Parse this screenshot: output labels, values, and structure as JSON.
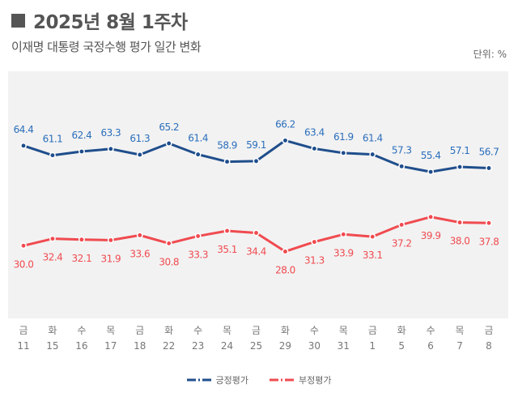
{
  "header": {
    "title": "2025년 8월 1주차",
    "subtitle": "이재명 대통령 국정수행 평가 일간 변화",
    "unit": "단위: %"
  },
  "chart_data": {
    "type": "line",
    "categories": [
      "11",
      "15",
      "16",
      "17",
      "18",
      "22",
      "23",
      "24",
      "25",
      "29",
      "30",
      "31",
      "1",
      "5",
      "6",
      "7",
      "8"
    ],
    "weekdays": [
      "금",
      "화",
      "수",
      "목",
      "금",
      "화",
      "수",
      "목",
      "금",
      "화",
      "수",
      "목",
      "금",
      "화",
      "수",
      "목",
      "금"
    ],
    "ylim": [
      5,
      90
    ],
    "grid": false,
    "legend_position": "bottom",
    "series": [
      {
        "name": "긍정평가",
        "color": "#1f4e8c",
        "label_color": "#2a6ebb",
        "values": [
          64.4,
          61.1,
          62.4,
          63.3,
          61.3,
          65.2,
          61.4,
          58.9,
          59.1,
          66.2,
          63.4,
          61.9,
          61.4,
          57.3,
          55.4,
          57.1,
          56.7
        ]
      },
      {
        "name": "부정평가",
        "color": "#f04b50",
        "label_color": "#f04b50",
        "values": [
          30.0,
          32.4,
          32.1,
          31.9,
          33.6,
          30.8,
          33.3,
          35.1,
          34.4,
          28.0,
          31.3,
          33.9,
          33.1,
          37.2,
          39.9,
          38.0,
          37.8
        ]
      }
    ]
  }
}
